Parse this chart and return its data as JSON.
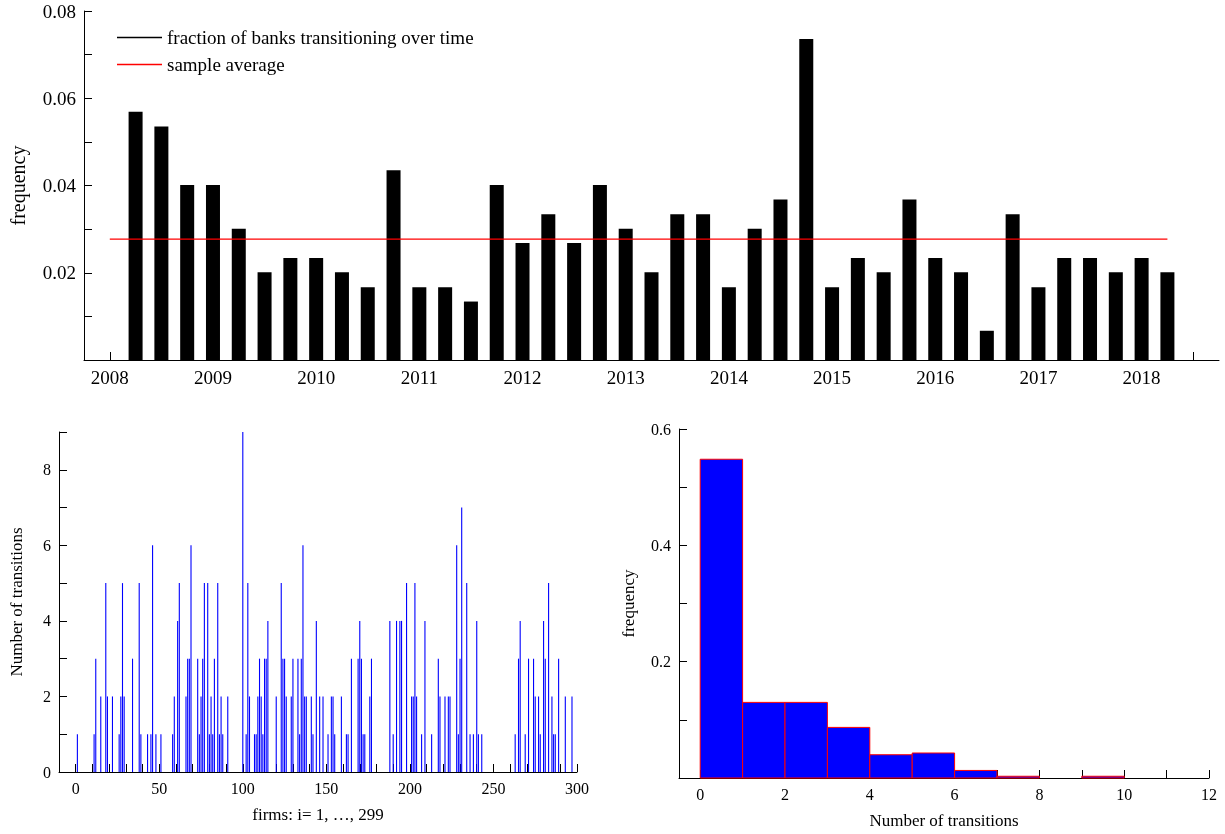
{
  "chart_data": [
    {
      "type": "bar",
      "ylabel": "frequency",
      "legend": "top left",
      "xlim": [
        2007.75,
        2018.75
      ],
      "xticks": [
        2008,
        2009,
        2010,
        2011,
        2012,
        2013,
        2014,
        2015,
        2016,
        2017,
        2018,
        {
          "value": 2018.5,
          "label": null
        }
      ],
      "ylim": [
        0,
        0.08
      ],
      "yticks": [
        {
          "value": 0.01,
          "label": null
        },
        0.02,
        {
          "value": 0.03,
          "label": null
        },
        0.04,
        {
          "value": 0.05,
          "label": null
        },
        0.06,
        {
          "value": 0.07,
          "label": null
        },
        0.08
      ],
      "series": [
        {
          "name": "fraction of banks transitioning over time",
          "color": "#000000",
          "x": [
            2008.25,
            2008.5,
            2008.75,
            2009,
            2009.25,
            2009.5,
            2009.75,
            2010,
            2010.25,
            2010.5,
            2010.75,
            2011,
            2011.25,
            2011.5,
            2011.75,
            2012,
            2012.25,
            2012.5,
            2012.75,
            2013,
            2013.25,
            2013.5,
            2013.75,
            2014,
            2014.25,
            2014.5,
            2014.75,
            2015,
            2015.25,
            2015.5,
            2015.75,
            2016,
            2016.25,
            2016.5,
            2016.75,
            2017,
            2017.25,
            2017.5,
            2017.75,
            2018,
            2018.25
          ],
          "values": [
            0.0569,
            0.0535,
            0.0401,
            0.0401,
            0.0301,
            0.0201,
            0.0234,
            0.0234,
            0.0201,
            0.0167,
            0.0435,
            0.0167,
            0.0167,
            0.0134,
            0.0401,
            0.0268,
            0.0334,
            0.0268,
            0.0401,
            0.0301,
            0.0201,
            0.0334,
            0.0334,
            0.0167,
            0.0301,
            0.0368,
            0.0736,
            0.0167,
            0.0234,
            0.0201,
            0.0368,
            0.0234,
            0.0201,
            0.0067,
            0.0334,
            0.0167,
            0.0234,
            0.0234,
            0.0201,
            0.0234,
            0.0201
          ]
        },
        {
          "name": "sample average",
          "type": "line",
          "color": "#ff0000",
          "x": [
            2008,
            2018.25
          ],
          "values": [
            0.0277,
            0.0277
          ]
        }
      ]
    },
    {
      "type": "bar",
      "xlabel": "firms: i= 1, …, 299",
      "ylabel": "Number of transitions",
      "color": "#0000ff",
      "xlim": [
        -10,
        300
      ],
      "xticks": [
        0,
        {
          "value": 10,
          "label": null
        },
        {
          "value": 20,
          "label": null
        },
        {
          "value": 30,
          "label": null
        },
        {
          "value": 40,
          "label": null
        },
        50,
        {
          "value": 60,
          "label": null
        },
        {
          "value": 70,
          "label": null
        },
        {
          "value": 80,
          "label": null
        },
        {
          "value": 90,
          "label": null
        },
        100,
        {
          "value": 110,
          "label": null
        },
        {
          "value": 120,
          "label": null
        },
        {
          "value": 130,
          "label": null
        },
        {
          "value": 140,
          "label": null
        },
        150,
        {
          "value": 160,
          "label": null
        },
        {
          "value": 170,
          "label": null
        },
        {
          "value": 180,
          "label": null
        },
        {
          "value": 190,
          "label": null
        },
        200,
        {
          "value": 210,
          "label": null
        },
        {
          "value": 220,
          "label": null
        },
        {
          "value": 230,
          "label": null
        },
        {
          "value": 240,
          "label": null
        },
        250,
        {
          "value": 260,
          "label": null
        },
        {
          "value": 270,
          "label": null
        },
        {
          "value": 280,
          "label": null
        },
        {
          "value": 290,
          "label": null
        },
        300
      ],
      "ylim": [
        0,
        9
      ],
      "yticks": [
        0,
        {
          "value": 1,
          "label": null
        },
        2,
        {
          "value": 3,
          "label": null
        },
        4,
        {
          "value": 5,
          "label": null
        },
        6,
        {
          "value": 7,
          "label": null
        },
        8,
        {
          "value": 9,
          "label": null
        }
      ],
      "x": [
        1,
        11,
        12,
        15,
        18,
        19,
        22,
        26,
        27,
        28,
        29,
        34,
        38,
        39,
        43,
        45,
        46,
        48,
        51,
        58,
        59,
        61,
        62,
        66,
        67,
        68,
        69,
        73,
        74,
        75,
        76,
        77,
        79,
        80,
        81,
        82,
        83,
        85,
        86,
        87,
        88,
        91,
        100,
        102,
        103,
        104,
        107,
        108,
        109,
        110,
        111,
        112,
        113,
        114,
        115,
        120,
        123,
        124,
        125,
        126,
        129,
        130,
        133,
        134,
        135,
        136,
        137,
        138,
        141,
        142,
        144,
        146,
        148,
        151,
        153,
        154,
        155,
        159,
        162,
        163,
        165,
        169,
        170,
        171,
        172,
        173,
        176,
        177,
        188,
        190,
        192,
        194,
        195,
        198,
        201,
        202,
        203,
        204,
        207,
        209,
        213,
        217,
        218,
        221,
        223,
        224,
        228,
        229,
        230,
        231,
        234,
        236,
        238,
        240,
        241,
        243,
        263,
        265,
        266,
        269,
        271,
        274,
        275,
        277,
        278,
        280,
        281,
        283,
        285,
        286,
        287,
        289,
        293,
        297
      ],
      "values": [
        1,
        1,
        3,
        2,
        5,
        2,
        2,
        1,
        2,
        5,
        2,
        3,
        5,
        1,
        1,
        1,
        6,
        1,
        1,
        1,
        2,
        4,
        5,
        2,
        3,
        3,
        6,
        3,
        1,
        2,
        3,
        5,
        5,
        1,
        2,
        1,
        3,
        5,
        1,
        2,
        1,
        2,
        9,
        1,
        5,
        2,
        1,
        1,
        2,
        3,
        2,
        1,
        3,
        3,
        4,
        2,
        5,
        3,
        3,
        2,
        2,
        3,
        3,
        1,
        3,
        6,
        2,
        2,
        2,
        1,
        4,
        2,
        2,
        1,
        2,
        2,
        1,
        2,
        1,
        1,
        3,
        3,
        4,
        3,
        1,
        1,
        2,
        3,
        4,
        1,
        4,
        4,
        4,
        5,
        2,
        2,
        5,
        2,
        1,
        4,
        1,
        3,
        2,
        2,
        2,
        2,
        6,
        1,
        3,
        7,
        5,
        1,
        1,
        4,
        1,
        1,
        1,
        3,
        4,
        1,
        3,
        3,
        2,
        2,
        1,
        4,
        3,
        5,
        2,
        1,
        1,
        3,
        2,
        2
      ]
    },
    {
      "type": "histogram",
      "xlabel": "Number of transitions",
      "ylabel": "frequency",
      "color": "#0000ff",
      "xlim": [
        -0.5,
        12
      ],
      "xticks": [
        0,
        {
          "value": 1,
          "label": null
        },
        2,
        {
          "value": 3,
          "label": null
        },
        4,
        {
          "value": 5,
          "label": null
        },
        6,
        {
          "value": 7,
          "label": null
        },
        8,
        {
          "value": 9,
          "label": null
        },
        10,
        {
          "value": 11,
          "label": null
        },
        12
      ],
      "ylim": [
        0,
        0.6
      ],
      "yticks": [
        {
          "value": 0.1,
          "label": null
        },
        0.2,
        {
          "value": 0.3,
          "label": null
        },
        0.4,
        {
          "value": 0.5,
          "label": null
        },
        0.6
      ],
      "bins": [
        0,
        1,
        2,
        3,
        4,
        5,
        6,
        7,
        8,
        9,
        10
      ],
      "values": [
        0.548,
        0.13,
        0.13,
        0.087,
        0.04,
        0.043,
        0.013,
        0.003,
        0,
        0.003
      ]
    }
  ]
}
